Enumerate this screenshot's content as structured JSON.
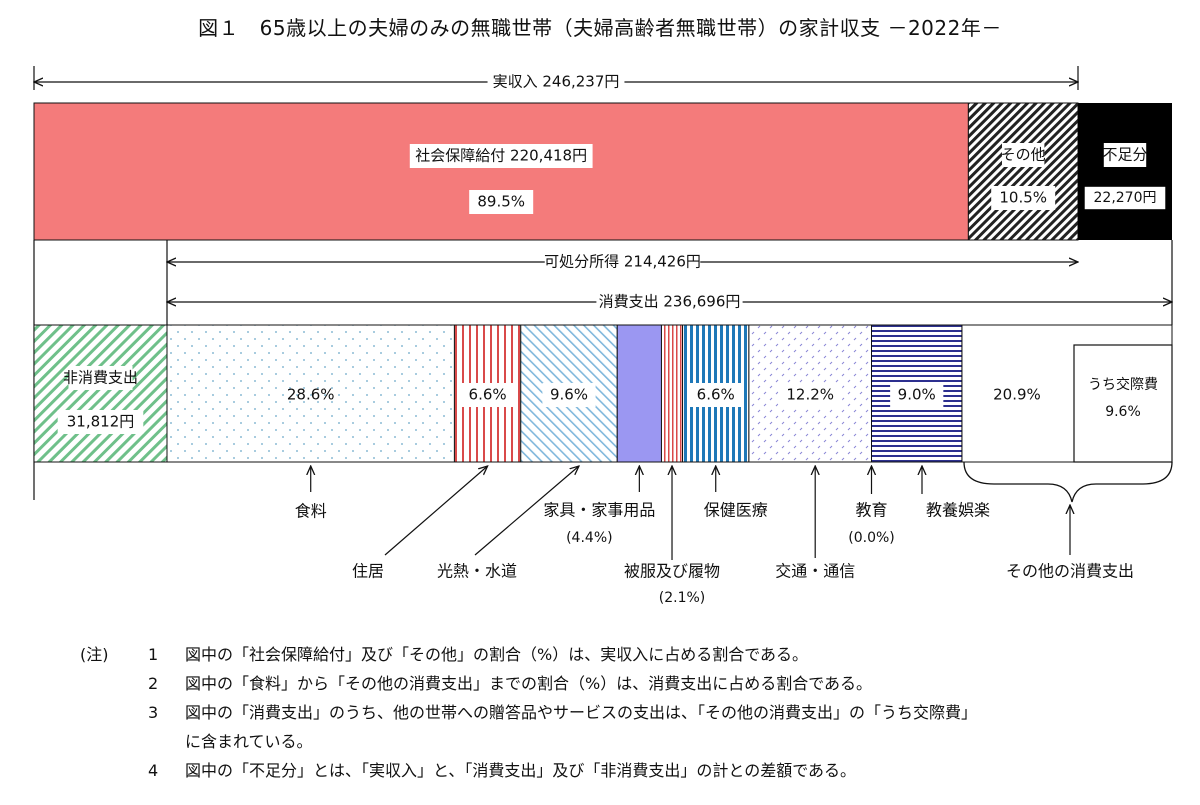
{
  "title": "図１　65歳以上の夫婦のみの無職世帯（夫婦高齢者無職世帯）の家計収支 －2022年－",
  "colors": {
    "social_security": "#f47b7b",
    "other": "#ffffff",
    "shortfall": "#000000",
    "non_consumption": "#6fc08a",
    "clothing_purple": "#9b97f2",
    "health_blue": "#1e78b8",
    "entertainment_navy": "#2c2f8f",
    "housing_red": "#d94a4a"
  },
  "chart_data": {
    "type": "bar",
    "income": {
      "label": "実収入",
      "value_text": "246,237円",
      "segments": [
        {
          "name": "社会保障給付",
          "value_text": "220,418円",
          "pct_text": "89.5%",
          "pct": 89.5
        },
        {
          "name": "その他",
          "pct_text": "10.5%",
          "pct": 10.5
        }
      ],
      "shortfall": {
        "name": "不足分",
        "value_text": "22,270円"
      }
    },
    "disposable": {
      "label": "可処分所得",
      "value_text": "214,426円"
    },
    "consumption": {
      "label": "消費支出",
      "value_text": "236,696円"
    },
    "non_consumption": {
      "name": "非消費支出",
      "value_text": "31,812円"
    },
    "expenses": [
      {
        "name": "食料",
        "pct": 28.6,
        "pct_text": "28.6%"
      },
      {
        "name": "住居",
        "pct": 6.6,
        "pct_text": "6.6%"
      },
      {
        "name": "光熱・水道",
        "pct": 9.6,
        "pct_text": "9.6%"
      },
      {
        "name": "家具・家事用品",
        "pct": 4.4,
        "pct_text": "(4.4%)"
      },
      {
        "name": "被服及び履物",
        "pct": 2.1,
        "pct_text": "(2.1%)"
      },
      {
        "name": "保健医療",
        "pct": 6.6,
        "pct_text": "6.6%"
      },
      {
        "name": "交通・通信",
        "pct": 12.2,
        "pct_text": "12.2%"
      },
      {
        "name": "教育",
        "pct": 0.0,
        "pct_text": "(0.0%)"
      },
      {
        "name": "教養娯楽",
        "pct": 9.0,
        "pct_text": "9.0%"
      },
      {
        "name": "その他の消費支出",
        "pct": 20.9,
        "pct_text": "20.9%",
        "sub": {
          "name": "うち交際費",
          "pct_text": "9.6%",
          "pct": 9.6
        }
      }
    ]
  },
  "notes": {
    "head": "(注)",
    "items": [
      {
        "num": "1",
        "text": "図中の「社会保障給付」及び「その他」の割合（%）は、実収入に占める割合である。"
      },
      {
        "num": "2",
        "text": "図中の「食料」から「その他の消費支出」までの割合（%）は、消費支出に占める割合である。"
      },
      {
        "num": "3",
        "text": "図中の「消費支出」のうち、他の世帯への贈答品やサービスの支出は、「その他の消費支出」の「うち交際費」",
        "cont": "に含まれている。"
      },
      {
        "num": "4",
        "text": "図中の「不足分」とは、「実収入」と、「消費支出」及び「非消費支出」の計との差額である。"
      }
    ]
  }
}
